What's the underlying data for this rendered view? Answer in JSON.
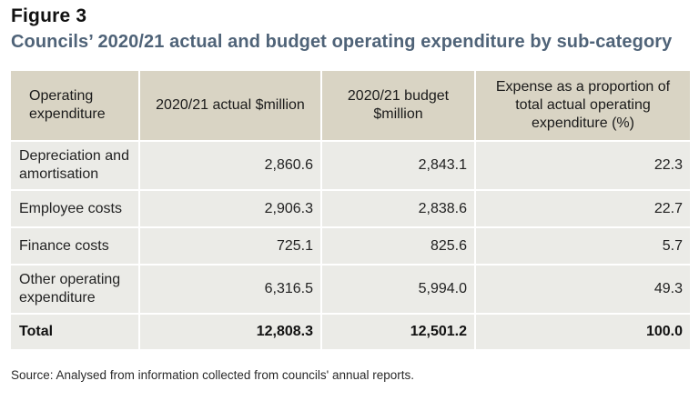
{
  "figure": {
    "label": "Figure 3",
    "title": "Councils’ 2020/21 actual and budget operating expenditure by sub-category"
  },
  "table": {
    "headers": [
      "Operating expenditure",
      "2020/21 actual $million",
      "2020/21 budget $million",
      "Expense as a proportion of total actual operating expenditure (%)"
    ],
    "rows": [
      {
        "label": "Depreciation and amortisation",
        "actual": "2,860.6",
        "budget": "2,843.1",
        "proportion": "22.3"
      },
      {
        "label": "Employee costs",
        "actual": "2,906.3",
        "budget": "2,838.6",
        "proportion": "22.7"
      },
      {
        "label": "Finance costs",
        "actual": "725.1",
        "budget": "825.6",
        "proportion": "5.7"
      },
      {
        "label": "Other operating expenditure",
        "actual": "6,316.5",
        "budget": "5,994.0",
        "proportion": "49.3"
      }
    ],
    "total": {
      "label": "Total",
      "actual": "12,808.3",
      "budget": "12,501.2",
      "proportion": "100.0"
    }
  },
  "source": "Source: Analysed from information collected from councils' annual reports.",
  "colors": {
    "title": "#4f6378",
    "header_bg": "#d9d4c4",
    "cell_bg": "#ebebe7"
  }
}
